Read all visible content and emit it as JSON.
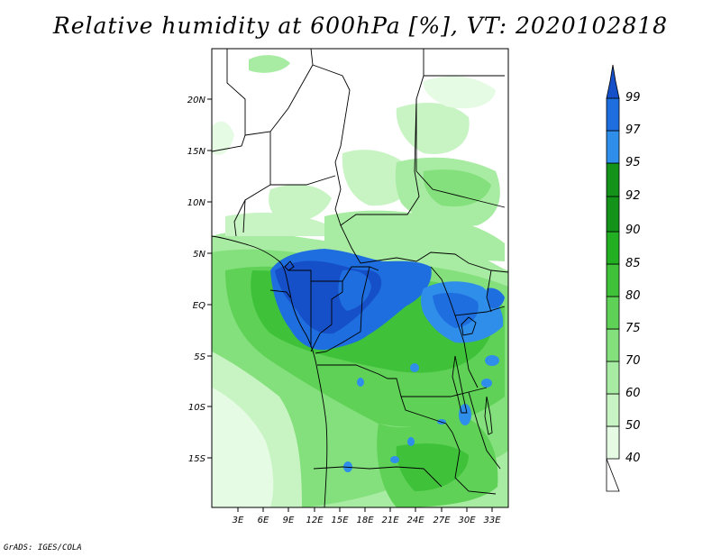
{
  "title": "Relative humidity at 600hPa [%], VT: 2020102818",
  "credit": "GrADS: IGES/COLA",
  "lat_ticks": [
    "20N",
    "15N",
    "10N",
    "5N",
    "EQ",
    "5S",
    "10S",
    "15S"
  ],
  "lon_ticks": [
    "3E",
    "6E",
    "9E",
    "12E",
    "15E",
    "18E",
    "21E",
    "24E",
    "27E",
    "30E",
    "33E"
  ],
  "colorbar": {
    "levels": [
      "40",
      "50",
      "60",
      "70",
      "75",
      "80",
      "85",
      "90",
      "92",
      "95",
      "97",
      "99"
    ],
    "colors": [
      "#ffffff",
      "#e5fbe3",
      "#c8f4c3",
      "#a8eba2",
      "#84e07c",
      "#5fd157",
      "#3fc23a",
      "#22b022",
      "#13931a",
      "#2f8eea",
      "#1e6ee0",
      "#1650c8"
    ]
  }
}
